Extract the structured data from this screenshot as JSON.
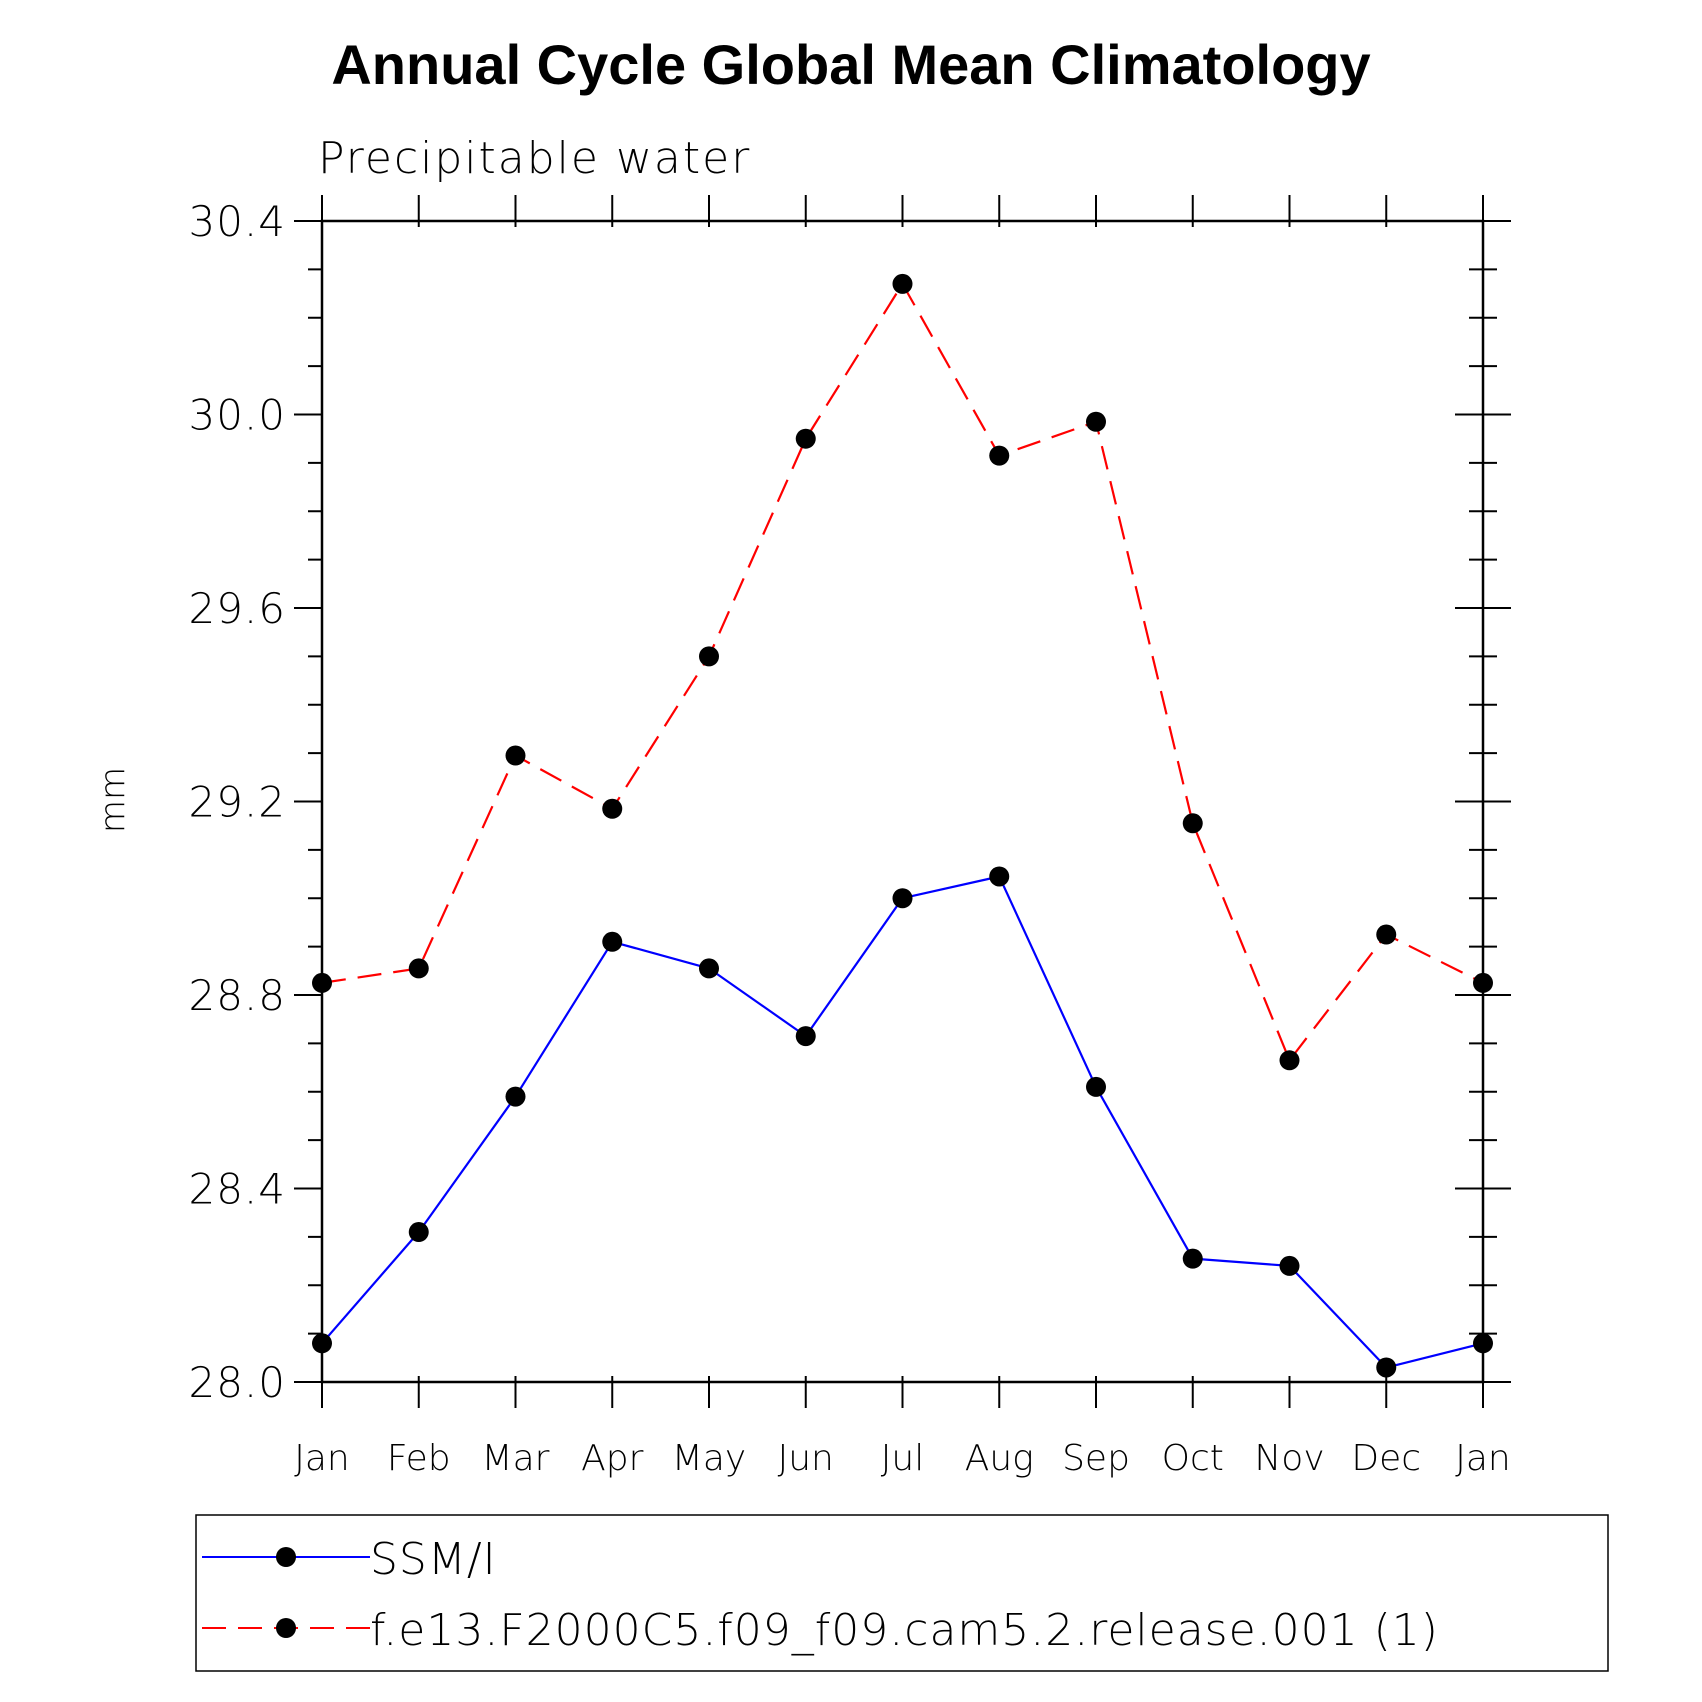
{
  "chart_data": {
    "type": "line",
    "title": "Annual Cycle Global Mean Climatology",
    "subtitle": "Precipitable water",
    "ylabel": "mm",
    "xlabel": "",
    "ylim": [
      28.0,
      30.4
    ],
    "yticks": [
      "28.0",
      "28.4",
      "28.8",
      "29.2",
      "29.6",
      "30.0",
      "30.4"
    ],
    "ytick_values": [
      28.0,
      28.4,
      28.8,
      29.2,
      29.6,
      30.0,
      30.4
    ],
    "categories": [
      "Jan",
      "Feb",
      "Mar",
      "Apr",
      "May",
      "Jun",
      "Jul",
      "Aug",
      "Sep",
      "Oct",
      "Nov",
      "Dec",
      "Jan"
    ],
    "series": [
      {
        "name": "SSM/I",
        "color": "#0000ff",
        "dash": "solid",
        "marker": "filled-circle",
        "values": [
          28.08,
          28.31,
          28.59,
          28.91,
          28.855,
          28.715,
          29.0,
          29.045,
          28.61,
          28.255,
          28.24,
          28.03,
          28.08
        ]
      },
      {
        "name": "f.e13.F2000C5.f09_f09.cam5.2.release.001 (1)",
        "color": "#ff0000",
        "dash": "dashed",
        "marker": "filled-circle",
        "values": [
          28.825,
          28.855,
          29.295,
          29.185,
          29.5,
          29.95,
          30.27,
          29.915,
          29.985,
          29.155,
          28.665,
          28.925,
          28.825
        ]
      }
    ],
    "legend_position": "bottom",
    "grid": false
  }
}
